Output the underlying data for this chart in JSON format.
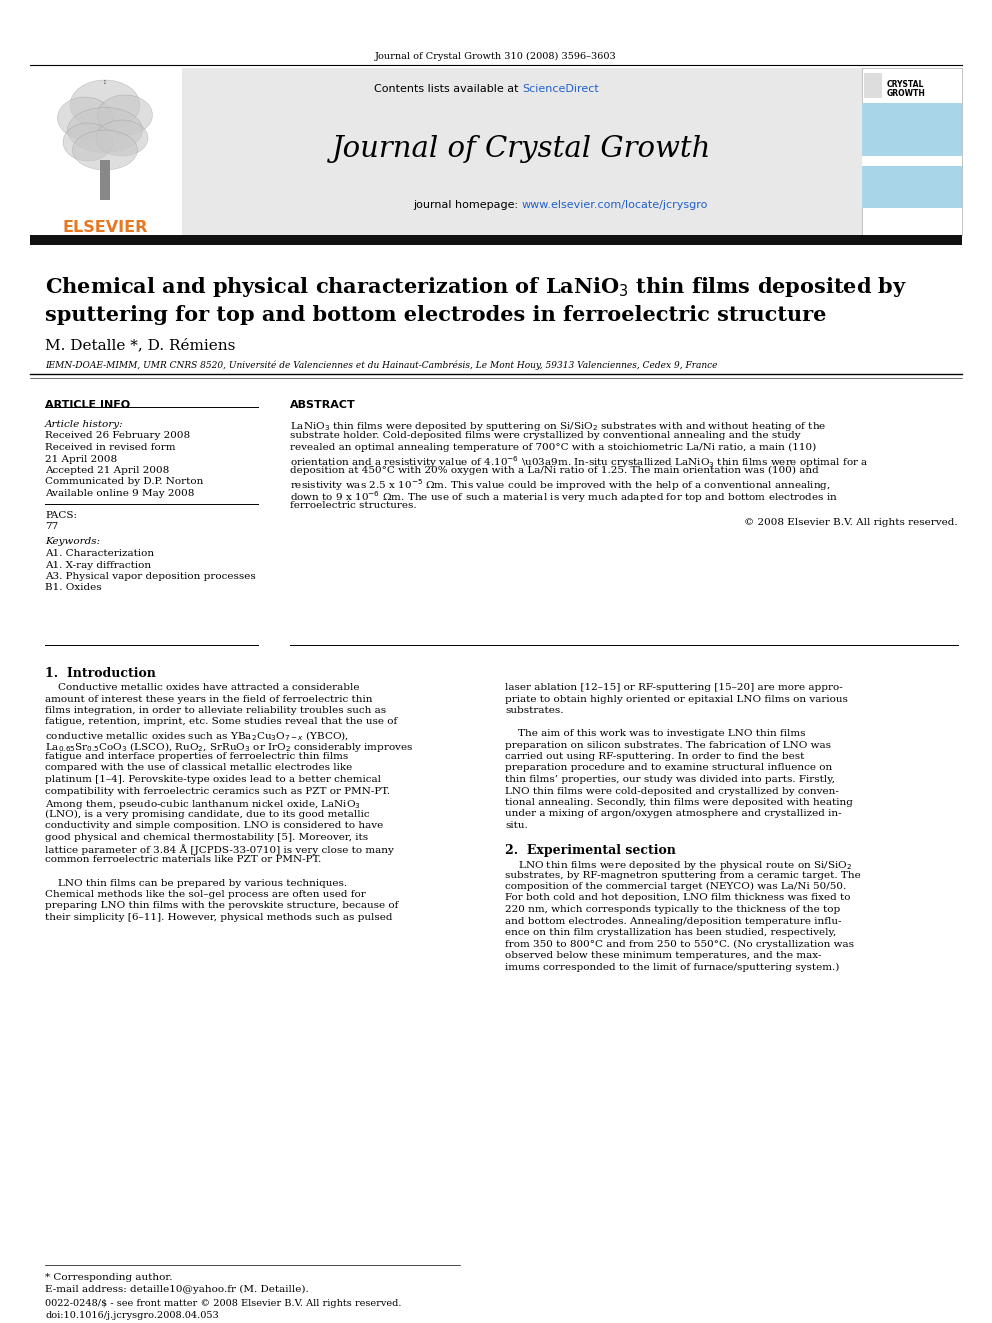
{
  "journal_ref": "Journal of Crystal Growth 310 (2008) 3596–3603",
  "contents_line": "Contents lists available at ",
  "sciencedirect": "ScienceDirect",
  "journal_name": "Journal of Crystal Growth",
  "homepage_label": "journal homepage: ",
  "homepage_url": "www.elsevier.com/locate/jcrysgro",
  "authors": "M. Detalle *, D. Rémiens",
  "affiliation": "IEMN-DOAE-MIMM, UMR CNRS 8520, Université de Valenciennes et du Hainaut-Cambrésis, Le Mont Houy, 59313 Valenciennes, Cedex 9, France",
  "article_info_header": "ARTICLE INFO",
  "abstract_header": "ABSTRACT",
  "article_history_label": "Article history:",
  "received1": "Received 26 February 2008",
  "received_revised": "Received in revised form",
  "received_revised2": "21 April 2008",
  "accepted": "Accepted 21 April 2008",
  "communicated": "Communicated by D.P. Norton",
  "available": "Available online 9 May 2008",
  "pacs_label": "PACS:",
  "pacs_val": "77",
  "keywords_label": "Keywords:",
  "kw1": "A1. Characterization",
  "kw2": "A1. X-ray diffraction",
  "kw3": "A3. Physical vapor deposition processes",
  "kw4": "B1. Oxides",
  "copyright": "© 2008 Elsevier B.V. All rights reserved.",
  "section1_title": "1.  Introduction",
  "section2_title": "2.  Experimental section",
  "footnote_star": "* Corresponding author.",
  "footnote_email": "E-mail address: detaille10@yahoo.fr (M. Detaille).",
  "footnote_issn": "0022-0248/$ - see front matter © 2008 Elsevier B.V. All rights reserved.",
  "footnote_doi": "doi:10.1016/j.jcrysgro.2008.04.053",
  "elsevier_orange": "#e87722",
  "light_blue": "#a8d5e8",
  "header_gray": "#e8e8e8"
}
